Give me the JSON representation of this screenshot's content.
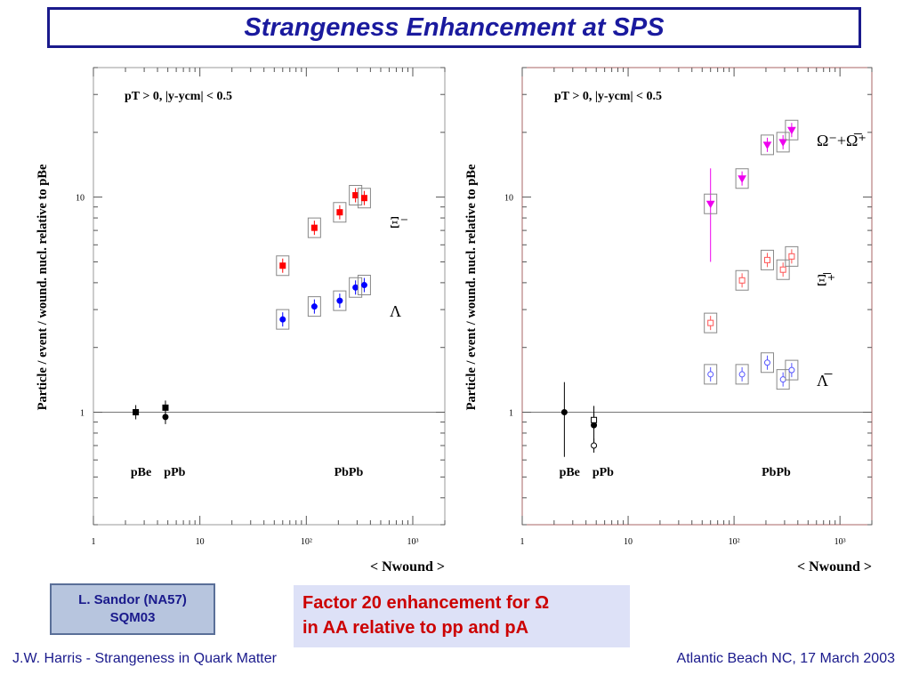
{
  "slide": {
    "title": "Strangeness Enhancement at SPS",
    "credit_line1": "L. Sandor (NA57)",
    "credit_line2": "SQM03",
    "factor_line1": "Factor 20 enhancement for Ω",
    "factor_line2": "in AA relative to pp and pA",
    "footer_left": "J.W. Harris - Strangeness in Quark Matter",
    "footer_right": "Atlantic Beach NC, 17 March 2003"
  },
  "chart_data": [
    {
      "type": "scatter",
      "ylabel": "Particle / event / wound. nucl. relative to pBe",
      "xlabel": "< Nwound >",
      "x_scale": "log",
      "y_scale": "log",
      "xlim": [
        1,
        2000
      ],
      "ylim": [
        0.3,
        40
      ],
      "x_ticks": [
        "1",
        "10",
        "10²",
        "10³"
      ],
      "y_ticks": [
        "1",
        "10"
      ],
      "cut_label": "pT > 0,  |y-ycm| < 0.5",
      "system_labels": [
        "pBe",
        "pPb",
        "PbPb"
      ],
      "reference_line": 1,
      "series": [
        {
          "name": "Ξ⁻",
          "color": "#ff0000",
          "marker": "square-filled",
          "points": [
            {
              "x": 60,
              "y": 4.8
            },
            {
              "x": 119,
              "y": 7.2
            },
            {
              "x": 206,
              "y": 8.5
            },
            {
              "x": 290,
              "y": 10.2
            },
            {
              "x": 350,
              "y": 9.9
            }
          ]
        },
        {
          "name": "Λ",
          "color": "#0000ff",
          "marker": "circle-filled",
          "points": [
            {
              "x": 60,
              "y": 2.7
            },
            {
              "x": 119,
              "y": 3.1
            },
            {
              "x": 206,
              "y": 3.3
            },
            {
              "x": 290,
              "y": 3.8
            },
            {
              "x": 350,
              "y": 3.9
            }
          ]
        },
        {
          "name": "",
          "color": "#000000",
          "marker": "square-filled",
          "points": [
            {
              "x": 2.5,
              "y": 1.0
            },
            {
              "x": 4.75,
              "y": 1.05
            }
          ]
        },
        {
          "name": "",
          "color": "#000000",
          "marker": "circle-filled",
          "points": [
            {
              "x": 4.75,
              "y": 0.95
            }
          ]
        }
      ]
    },
    {
      "type": "scatter",
      "ylabel": "Particle / event / wound. nucl. relative to pBe",
      "xlabel": "< Nwound >",
      "x_scale": "log",
      "y_scale": "log",
      "xlim": [
        1,
        2000
      ],
      "ylim": [
        0.3,
        40
      ],
      "x_ticks": [
        "1",
        "10",
        "10²",
        "10³"
      ],
      "y_ticks": [
        "1",
        "10"
      ],
      "cut_label": "pT > 0,  |y-ycm| < 0.5",
      "system_labels": [
        "pBe",
        "pPb",
        "PbPb"
      ],
      "reference_line": 1,
      "series": [
        {
          "name": "Ω⁻+Ω̅⁺",
          "color": "#ee00ee",
          "marker": "triangle-down-filled",
          "points": [
            {
              "x": 60,
              "y": 9.3,
              "err": 4.3
            },
            {
              "x": 119,
              "y": 12.2
            },
            {
              "x": 206,
              "y": 17.5
            },
            {
              "x": 290,
              "y": 18.0
            },
            {
              "x": 350,
              "y": 20.5
            }
          ]
        },
        {
          "name": "Ξ̅⁺",
          "color": "#ff5555",
          "marker": "square-open",
          "points": [
            {
              "x": 60,
              "y": 2.6
            },
            {
              "x": 119,
              "y": 4.1
            },
            {
              "x": 206,
              "y": 5.1
            },
            {
              "x": 290,
              "y": 4.6
            },
            {
              "x": 350,
              "y": 5.3
            }
          ]
        },
        {
          "name": "Λ̅",
          "color": "#5555ff",
          "marker": "circle-open",
          "points": [
            {
              "x": 60,
              "y": 1.5
            },
            {
              "x": 119,
              "y": 1.5
            },
            {
              "x": 206,
              "y": 1.7
            },
            {
              "x": 290,
              "y": 1.42
            },
            {
              "x": 350,
              "y": 1.57
            }
          ]
        },
        {
          "name": "",
          "color": "#000000",
          "marker": "circle-filled",
          "points": [
            {
              "x": 2.5,
              "y": 1.0,
              "err": 0.38
            },
            {
              "x": 4.75,
              "y": 0.87,
              "err": 0.2
            }
          ]
        },
        {
          "name": "",
          "color": "#000000",
          "marker": "square-open",
          "points": [
            {
              "x": 4.75,
              "y": 0.92
            }
          ]
        },
        {
          "name": "",
          "color": "#000000",
          "marker": "circle-open",
          "points": [
            {
              "x": 4.75,
              "y": 0.7
            }
          ]
        }
      ]
    }
  ]
}
